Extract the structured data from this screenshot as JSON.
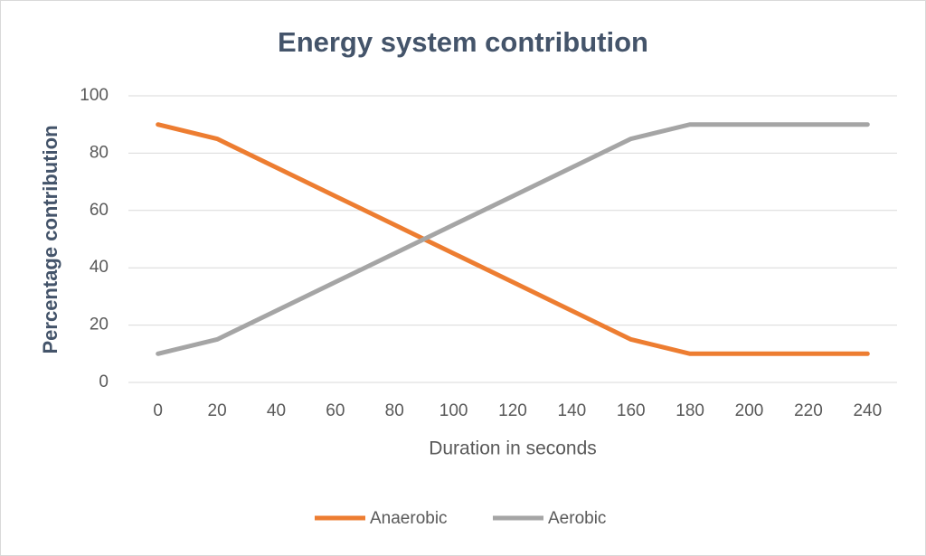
{
  "chart_data": {
    "type": "line",
    "title": "Energy system contribution",
    "x_label": "Duration in seconds",
    "y_label": "Percentage contribution",
    "categories": [
      "0",
      "20",
      "40",
      "60",
      "80",
      "100",
      "120",
      "140",
      "160",
      "180",
      "200",
      "220",
      "240"
    ],
    "series": [
      {
        "name": "Anaerobic",
        "color": "#ed7d31",
        "values": [
          90,
          85,
          75,
          65,
          55,
          45,
          35,
          25,
          15,
          10,
          10,
          10,
          10
        ]
      },
      {
        "name": "Aerobic",
        "color": "#a5a5a5",
        "values": [
          10,
          15,
          25,
          35,
          45,
          55,
          65,
          75,
          85,
          90,
          90,
          90,
          90
        ]
      }
    ],
    "ylim": [
      0,
      100
    ],
    "yticks": [
      0,
      20,
      40,
      60,
      80,
      100
    ],
    "grid": true,
    "legend": "bottom"
  }
}
